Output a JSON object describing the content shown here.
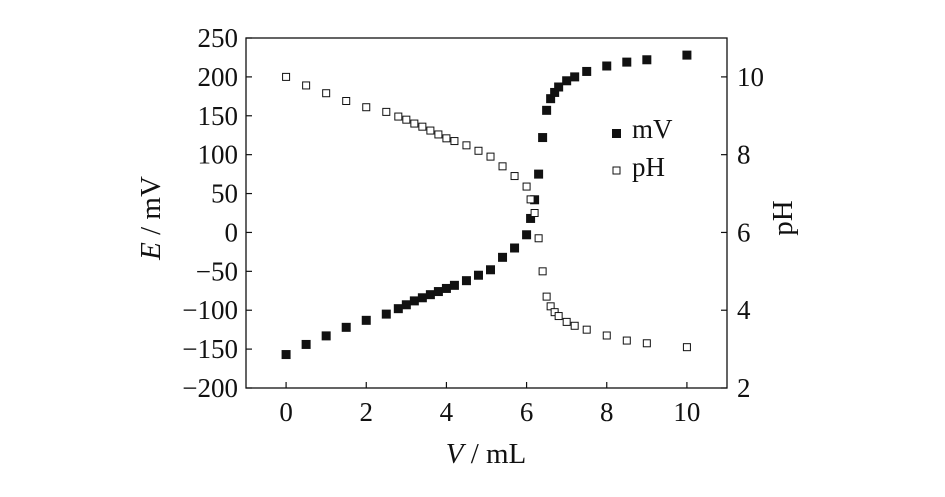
{
  "chart_data": {
    "type": "scatter",
    "x_label": {
      "symbol": "V",
      "unit": " / mL"
    },
    "y_left_label": {
      "symbol": "E",
      "unit": " / mV"
    },
    "y_right_label": "pH",
    "x_range": [
      -1,
      11
    ],
    "y_left_range": [
      -200,
      250
    ],
    "y_right_range": [
      2,
      11
    ],
    "x_ticks": [
      "0",
      "2",
      "4",
      "6",
      "8",
      "10"
    ],
    "y_left_ticks": [
      "−200",
      "−150",
      "−100",
      "−50",
      "0",
      "50",
      "100",
      "150",
      "200",
      "250"
    ],
    "y_right_ticks": [
      "2",
      "4",
      "6",
      "8",
      "10"
    ],
    "legend_position": "right-middle",
    "series": [
      {
        "name": "mV",
        "marker": "filled-square",
        "axis": "left",
        "x": [
          0.0,
          0.5,
          1.0,
          1.5,
          2.0,
          2.5,
          2.8,
          3.0,
          3.2,
          3.4,
          3.6,
          3.8,
          4.0,
          4.2,
          4.5,
          4.8,
          5.1,
          5.4,
          5.7,
          6.0,
          6.1,
          6.2,
          6.3,
          6.4,
          6.5,
          6.6,
          6.7,
          6.8,
          7.0,
          7.2,
          7.5,
          8.0,
          8.5,
          9.0,
          10.0
        ],
        "y": [
          -157,
          -144,
          -133,
          -122,
          -113,
          -105,
          -98,
          -93,
          -88,
          -84,
          -80,
          -76,
          -72,
          -68,
          -62,
          -55,
          -48,
          -32,
          -20,
          -3,
          18,
          42,
          75,
          122,
          157,
          172,
          180,
          187,
          195,
          200,
          207,
          214,
          219,
          222,
          228
        ]
      },
      {
        "name": "pH",
        "marker": "open-square",
        "axis": "right",
        "x": [
          0.0,
          0.5,
          1.0,
          1.5,
          2.0,
          2.5,
          2.8,
          3.0,
          3.2,
          3.4,
          3.6,
          3.8,
          4.0,
          4.2,
          4.5,
          4.8,
          5.1,
          5.4,
          5.7,
          6.0,
          6.1,
          6.2,
          6.3,
          6.4,
          6.5,
          6.6,
          6.7,
          6.8,
          7.0,
          7.2,
          7.5,
          8.0,
          8.5,
          9.0,
          10.0
        ],
        "y": [
          10.0,
          9.78,
          9.58,
          9.38,
          9.22,
          9.1,
          8.98,
          8.9,
          8.8,
          8.72,
          8.62,
          8.52,
          8.42,
          8.35,
          8.24,
          8.1,
          7.95,
          7.7,
          7.45,
          7.18,
          6.85,
          6.5,
          5.85,
          5.0,
          4.35,
          4.1,
          3.95,
          3.85,
          3.7,
          3.6,
          3.5,
          3.35,
          3.22,
          3.15,
          3.05
        ]
      }
    ]
  }
}
